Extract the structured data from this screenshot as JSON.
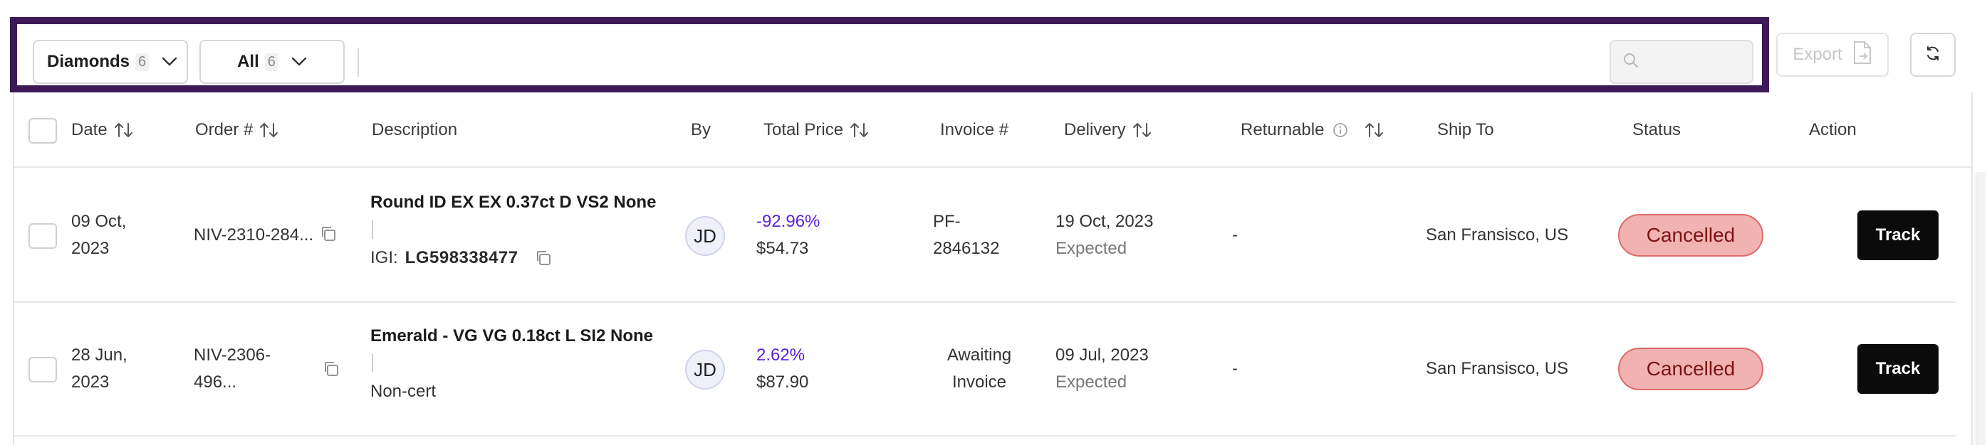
{
  "toolbar": {
    "category_dropdown": {
      "label": "Diamonds",
      "count": "6"
    },
    "filter_dropdown": {
      "label": "All",
      "count": "6"
    },
    "search": {
      "placeholder": ""
    },
    "export_label": "Export"
  },
  "table": {
    "headers": {
      "date": "Date",
      "order": "Order #",
      "description": "Description",
      "by": "By",
      "total_price": "Total Price",
      "invoice": "Invoice #",
      "delivery": "Delivery",
      "returnable": "Returnable",
      "ship_to": "Ship To",
      "status": "Status",
      "action": "Action"
    },
    "rows": [
      {
        "date_line1": "09 Oct,",
        "date_line2": "2023",
        "order_line1": "NIV-2310-284...",
        "order_line2": "",
        "description_title": "Round ID EX EX 0.37ct D VS2 None",
        "cert_label": "IGI:",
        "cert_id": "LG598338477",
        "by": "JD",
        "price_change": "-92.96%",
        "price": "$54.73",
        "invoice_line1": "PF-",
        "invoice_line2": "2846132",
        "delivery_date": "19 Oct, 2023",
        "delivery_status": "Expected",
        "returnable": "-",
        "ship_to": "San Fransisco, US",
        "status": "Cancelled",
        "action": "Track"
      },
      {
        "date_line1": "28 Jun,",
        "date_line2": "2023",
        "order_line1": "NIV-2306-",
        "order_line2": "496...",
        "description_title": "Emerald - VG VG 0.18ct L SI2 None",
        "cert_text": "Non-cert",
        "by": "JD",
        "price_change": "2.62%",
        "price": "$87.90",
        "invoice_line1": "Awaiting",
        "invoice_line2": "Invoice",
        "delivery_date": "09 Jul, 2023",
        "delivery_status": "Expected",
        "returnable": "-",
        "ship_to": "San Fransisco, US",
        "status": "Cancelled",
        "action": "Track"
      }
    ]
  },
  "colors": {
    "highlight_frame": "#3d1956",
    "price_change": "#5b21d6",
    "status_cancelled_bg": "#f1b2b2",
    "track_button_bg": "#0b0b0b"
  }
}
